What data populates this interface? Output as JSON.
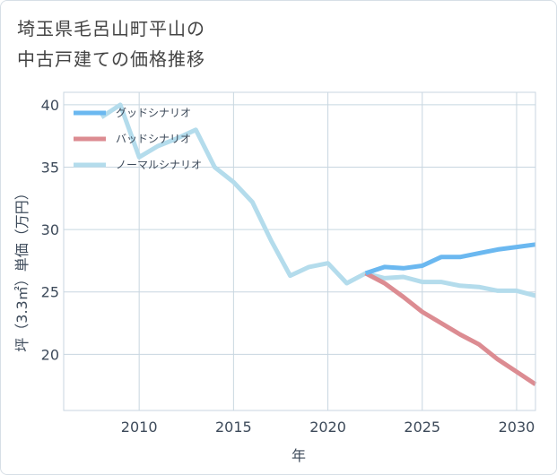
{
  "title": {
    "line1": "埼玉県毛呂山町平山の",
    "line2": "中古戸建ての価格推移"
  },
  "colors": {
    "good": "#6bb8f0",
    "bad": "#dc8c92",
    "normal": "#b4dcec",
    "grid": "#c8d6e0",
    "text": "#3d4a5a"
  },
  "chart_data": {
    "type": "line",
    "title": "埼玉県毛呂山町平山の中古戸建ての価格推移",
    "xlabel": "年",
    "ylabel": "坪（3.3㎡）単価（万円）",
    "xlim": [
      2006,
      2031
    ],
    "ylim": [
      15.5,
      41
    ],
    "xticks": [
      2010,
      2015,
      2020,
      2025,
      2030
    ],
    "yticks": [
      20,
      25,
      30,
      35,
      40
    ],
    "grid": true,
    "legend_position": "top-left",
    "series": [
      {
        "name": "グッドシナリオ",
        "color": "#6bb8f0",
        "x": [
          2022,
          2023,
          2024,
          2025,
          2026,
          2027,
          2028,
          2029,
          2030,
          2031
        ],
        "y": [
          26.5,
          27.0,
          26.9,
          27.1,
          27.8,
          27.8,
          28.1,
          28.4,
          28.6,
          28.8
        ]
      },
      {
        "name": "バッドシナリオ",
        "color": "#dc8c92",
        "x": [
          2022,
          2023,
          2024,
          2025,
          2026,
          2027,
          2028,
          2029,
          2030,
          2031
        ],
        "y": [
          26.5,
          25.7,
          24.6,
          23.4,
          22.5,
          21.6,
          20.8,
          19.6,
          18.6,
          17.6
        ]
      },
      {
        "name": "ノーマルシナリオ",
        "color": "#b4dcec",
        "x": [
          2008,
          2009,
          2010,
          2011,
          2012,
          2013,
          2014,
          2015,
          2016,
          2017,
          2018,
          2019,
          2020,
          2021,
          2022,
          2023,
          2024,
          2025,
          2026,
          2027,
          2028,
          2029,
          2030,
          2031
        ],
        "y": [
          39.0,
          40.0,
          35.8,
          36.7,
          37.3,
          38.0,
          35.0,
          33.8,
          32.2,
          29.1,
          26.3,
          27.0,
          27.3,
          25.7,
          26.5,
          26.1,
          26.2,
          25.8,
          25.8,
          25.5,
          25.4,
          25.1,
          25.1,
          24.7
        ]
      }
    ]
  }
}
